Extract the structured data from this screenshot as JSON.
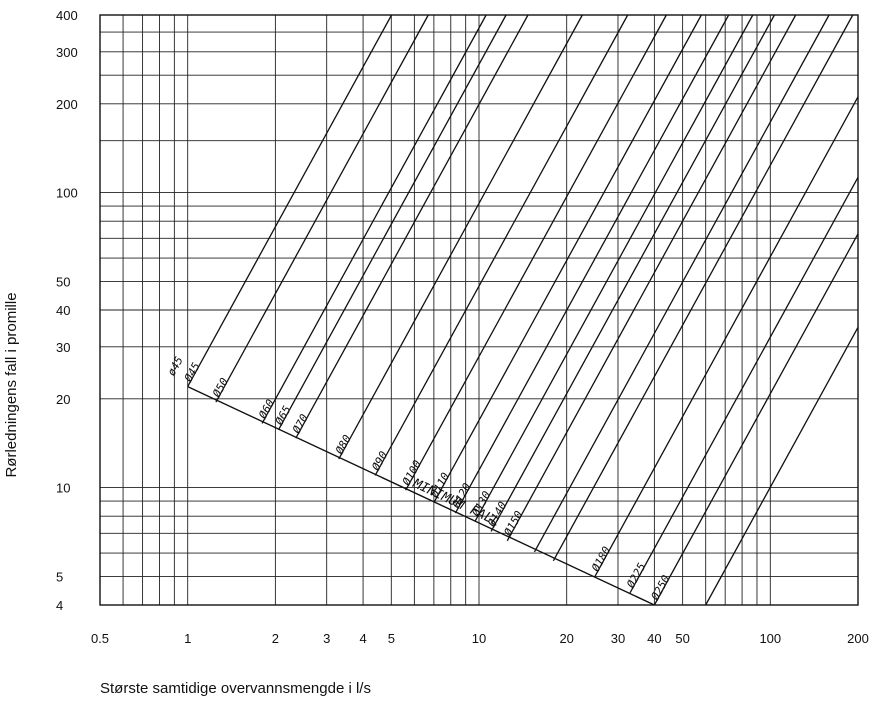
{
  "chart_data": {
    "type": "line",
    "xlabel": "Største samtidige overvannsmengde i l/s",
    "ylabel": "Rørledningens fall i promille",
    "x_scale": "log",
    "y_scale": "log",
    "xlim": [
      0.5,
      200
    ],
    "ylim": [
      4,
      400
    ],
    "grid": true,
    "x_ticks": [
      {
        "value": 0.5,
        "label": "0.5"
      },
      {
        "value": 1,
        "label": "1"
      },
      {
        "value": 2,
        "label": "2"
      },
      {
        "value": 3,
        "label": "3"
      },
      {
        "value": 4,
        "label": "4"
      },
      {
        "value": 5,
        "label": "5"
      },
      {
        "value": 10,
        "label": "10"
      },
      {
        "value": 20,
        "label": "20"
      },
      {
        "value": 30,
        "label": "30"
      },
      {
        "value": 40,
        "label": "40"
      },
      {
        "value": 50,
        "label": "50"
      },
      {
        "value": 100,
        "label": "100"
      },
      {
        "value": 200,
        "label": "200"
      }
    ],
    "y_ticks": [
      {
        "value": 4,
        "label": "4"
      },
      {
        "value": 5,
        "label": "5"
      },
      {
        "value": 10,
        "label": "10"
      },
      {
        "value": 20,
        "label": "20"
      },
      {
        "value": 30,
        "label": "30"
      },
      {
        "value": 40,
        "label": "40"
      },
      {
        "value": 50,
        "label": "50"
      },
      {
        "value": 100,
        "label": "100"
      },
      {
        "value": 200,
        "label": "200"
      },
      {
        "value": 300,
        "label": "300"
      },
      {
        "value": 400,
        "label": "400"
      }
    ],
    "minimum_fall": {
      "label": "MINIMUM FALL",
      "points": [
        [
          1.0,
          22.0
        ],
        [
          40.0,
          4.0
        ]
      ]
    },
    "series": [
      {
        "name": "Ø45",
        "start": [
          1.0,
          22.0
        ]
      },
      {
        "name": "Ø50",
        "start": [
          1.25,
          19.5
        ]
      },
      {
        "name": "Ø60",
        "start": [
          1.8,
          16.5
        ]
      },
      {
        "name": "Ø65",
        "start": [
          2.05,
          15.7
        ]
      },
      {
        "name": "Ø70",
        "start": [
          2.35,
          14.7
        ]
      },
      {
        "name": "Ø80",
        "start": [
          3.3,
          12.5
        ]
      },
      {
        "name": "Ø90",
        "start": [
          4.4,
          11.0
        ]
      },
      {
        "name": "Ø100",
        "start": [
          5.6,
          9.8
        ]
      },
      {
        "name": "Ø110",
        "start": [
          7.0,
          8.9
        ]
      },
      {
        "name": "Ø120",
        "start": [
          8.3,
          8.2
        ]
      },
      {
        "name": "Ø130",
        "start": [
          9.7,
          7.7
        ]
      },
      {
        "name": "Ø140",
        "start": [
          11.0,
          7.1
        ]
      },
      {
        "name": "Ø150",
        "start": [
          12.5,
          6.6
        ]
      },
      {
        "name": "",
        "start": [
          15.5,
          6.05
        ]
      },
      {
        "name": "",
        "start": [
          18.0,
          5.65
        ]
      },
      {
        "name": "Ø180",
        "start": [
          25.0,
          5.0
        ]
      },
      {
        "name": "Ø225",
        "start": [
          33.0,
          4.4
        ]
      },
      {
        "name": "Ø250",
        "start": [
          40.0,
          4.0
        ]
      }
    ],
    "extra_lines": [
      {
        "start": [
          60.0,
          4.0
        ]
      }
    ],
    "line_slope_log": 1.8,
    "annotations": [
      {
        "text": "ø45",
        "series": "Ø45"
      }
    ]
  }
}
